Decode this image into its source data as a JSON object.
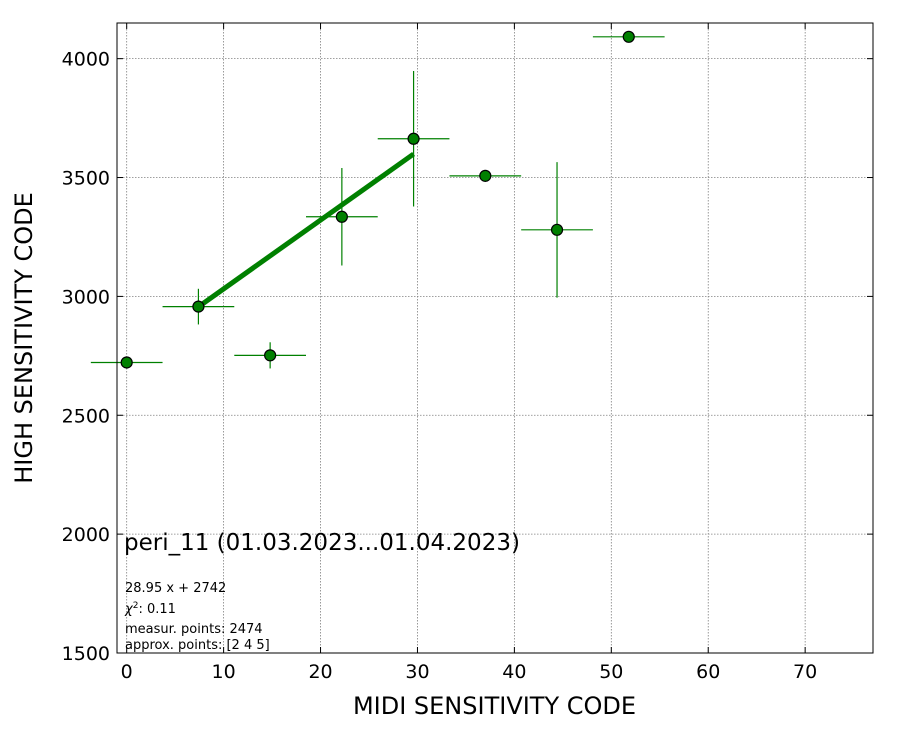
{
  "chart_data": {
    "type": "scatter",
    "title": "",
    "xlabel": "MIDI SENSITIVITY CODE",
    "ylabel": "HIGH SENSITIVITY CODE",
    "xlim": [
      -1,
      77
    ],
    "ylim": [
      1500,
      4150
    ],
    "x_ticks": [
      0,
      10,
      20,
      30,
      40,
      50,
      60,
      70
    ],
    "y_ticks": [
      1500,
      2000,
      2500,
      3000,
      3500,
      4000
    ],
    "grid": true,
    "colors": {
      "points": "#008000",
      "edge": "#000000",
      "fit": "#008000",
      "grid": "#808080"
    },
    "series": [
      {
        "type": "scatter_errorbar",
        "points": [
          {
            "x": 0.0,
            "y": 2722,
            "xerr": 3.7,
            "yerr": 0
          },
          {
            "x": 7.4,
            "y": 2957,
            "xerr": 3.7,
            "yerr": 75
          },
          {
            "x": 14.8,
            "y": 2752,
            "xerr": 3.7,
            "yerr": 55
          },
          {
            "x": 22.2,
            "y": 3335,
            "xerr": 3.7,
            "yerr": 205
          },
          {
            "x": 29.6,
            "y": 3663,
            "xerr": 3.7,
            "yerr": 285
          },
          {
            "x": 37.0,
            "y": 3507,
            "xerr": 3.7,
            "yerr": 0
          },
          {
            "x": 44.4,
            "y": 3280,
            "xerr": 3.7,
            "yerr": 285
          },
          {
            "x": 51.8,
            "y": 4092,
            "xerr": 3.7,
            "yerr": 0
          }
        ]
      },
      {
        "type": "fit_line",
        "slope": 28.95,
        "intercept": 2742,
        "x_range": [
          7.4,
          29.6
        ]
      }
    ],
    "annotations": {
      "heading": "peri_11 (01.03.2023...01.04.2023)",
      "fit_equation": "28.95 x + 2742",
      "chi2_value": "0.11",
      "measur_points": "measur. points: 2474",
      "approx_points": "approx. points: [2 4 5]"
    }
  }
}
